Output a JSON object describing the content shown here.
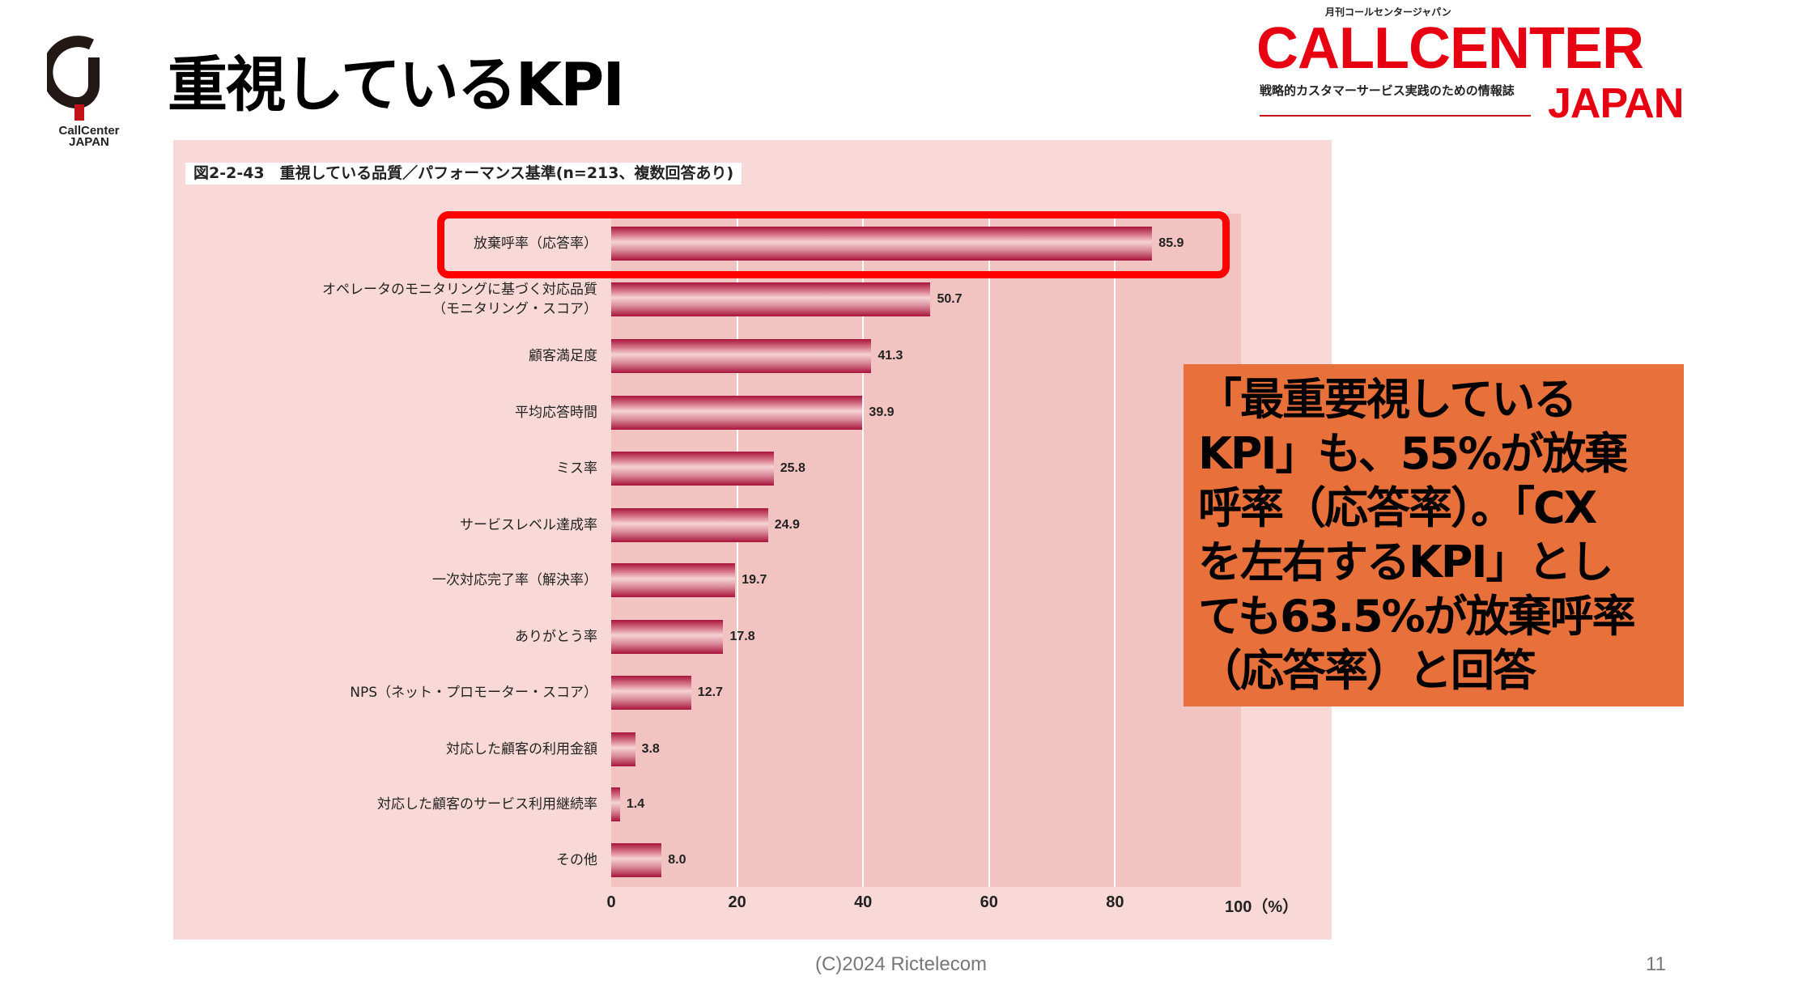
{
  "header": {
    "title": "重視しているKPI",
    "logo_left_text": "CallCenter JAPAN",
    "logo_right": {
      "small_top": "月刊コールセンタージャパン",
      "line1": "CALLCENTER",
      "tagline": "戦略的カスタマーサービス実践のための情報誌",
      "line2": "JAPAN"
    }
  },
  "colors": {
    "brand_red": "#e60012",
    "panel": "#f8d9d7",
    "plot": "#f1c4c2",
    "bar": "#a8143c",
    "callout": "#e8703a",
    "highlight": "#ff0000"
  },
  "chart_data": {
    "type": "bar",
    "orientation": "horizontal",
    "title": "図2-2-43　重視している品質／パフォーマンス基準(n=213、複数回答あり)",
    "categories": [
      "放棄呼率（応答率）",
      "オペレータのモニタリングに基づく対応品質\n（モニタリング・スコア）",
      "顧客満足度",
      "平均応答時間",
      "ミス率",
      "サービスレベル達成率",
      "一次対応完了率（解決率）",
      "ありがとう率",
      "NPS（ネット・プロモーター・スコア）",
      "対応した顧客の利用金額",
      "対応した顧客のサービス利用継続率",
      "その他"
    ],
    "values": [
      85.9,
      50.7,
      41.3,
      39.9,
      25.8,
      24.9,
      19.7,
      17.8,
      12.7,
      3.8,
      1.4,
      8.0
    ],
    "value_labels": [
      "85.9",
      "50.7",
      "41.3",
      "39.9",
      "25.8",
      "24.9",
      "19.7",
      "17.8",
      "12.7",
      "3.8",
      "1.4",
      "8.0"
    ],
    "xlim": [
      0,
      100
    ],
    "xticks": [
      "0",
      "20",
      "40",
      "60",
      "80",
      "100（%）"
    ],
    "grid": true,
    "highlighted_category": "放棄呼率（応答率）"
  },
  "callout": {
    "lines": [
      "「最重要視している",
      "KPI」も、55%が放棄",
      "呼率（応答率）。「CX",
      "を左右するKPI」とし",
      "ても63.5%が放棄呼率",
      "（応答率）と回答"
    ]
  },
  "footer": {
    "copyright": "(C)2024 Rictelecom",
    "page": "11"
  }
}
